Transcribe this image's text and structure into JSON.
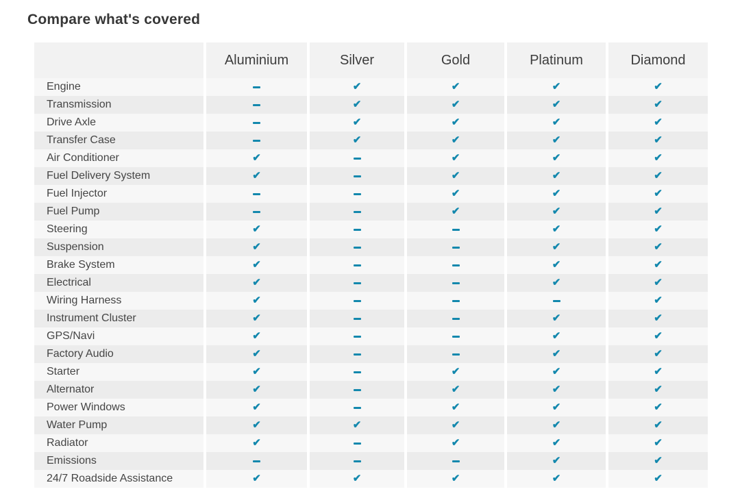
{
  "page": {
    "title": "Compare what's covered"
  },
  "table": {
    "columns": [
      "Aluminium",
      "Silver",
      "Gold",
      "Platinum",
      "Diamond"
    ],
    "rows": [
      {
        "label": "Engine",
        "coverage": [
          "dash",
          "check",
          "check",
          "check",
          "check"
        ]
      },
      {
        "label": "Transmission",
        "coverage": [
          "dash",
          "check",
          "check",
          "check",
          "check"
        ]
      },
      {
        "label": "Drive Axle",
        "coverage": [
          "dash",
          "check",
          "check",
          "check",
          "check"
        ]
      },
      {
        "label": "Transfer Case",
        "coverage": [
          "dash",
          "check",
          "check",
          "check",
          "check"
        ]
      },
      {
        "label": "Air Conditioner",
        "coverage": [
          "check",
          "dash",
          "check",
          "check",
          "check"
        ]
      },
      {
        "label": "Fuel Delivery System",
        "coverage": [
          "check",
          "dash",
          "check",
          "check",
          "check"
        ]
      },
      {
        "label": "Fuel Injector",
        "coverage": [
          "dash",
          "dash",
          "check",
          "check",
          "check"
        ]
      },
      {
        "label": "Fuel Pump",
        "coverage": [
          "dash",
          "dash",
          "check",
          "check",
          "check"
        ]
      },
      {
        "label": "Steering",
        "coverage": [
          "check",
          "dash",
          "dash",
          "check",
          "check"
        ]
      },
      {
        "label": "Suspension",
        "coverage": [
          "check",
          "dash",
          "dash",
          "check",
          "check"
        ]
      },
      {
        "label": "Brake System",
        "coverage": [
          "check",
          "dash",
          "dash",
          "check",
          "check"
        ]
      },
      {
        "label": "Electrical",
        "coverage": [
          "check",
          "dash",
          "dash",
          "check",
          "check"
        ]
      },
      {
        "label": "Wiring Harness",
        "coverage": [
          "check",
          "dash",
          "dash",
          "dash",
          "check"
        ]
      },
      {
        "label": "Instrument Cluster",
        "coverage": [
          "check",
          "dash",
          "dash",
          "check",
          "check"
        ]
      },
      {
        "label": "GPS/Navi",
        "coverage": [
          "check",
          "dash",
          "dash",
          "check",
          "check"
        ]
      },
      {
        "label": "Factory Audio",
        "coverage": [
          "check",
          "dash",
          "dash",
          "check",
          "check"
        ]
      },
      {
        "label": "Starter",
        "coverage": [
          "check",
          "dash",
          "check",
          "check",
          "check"
        ]
      },
      {
        "label": "Alternator",
        "coverage": [
          "check",
          "dash",
          "check",
          "check",
          "check"
        ]
      },
      {
        "label": "Power Windows",
        "coverage": [
          "check",
          "dash",
          "check",
          "check",
          "check"
        ]
      },
      {
        "label": "Water Pump",
        "coverage": [
          "check",
          "check",
          "check",
          "check",
          "check"
        ]
      },
      {
        "label": "Radiator",
        "coverage": [
          "check",
          "dash",
          "check",
          "check",
          "check"
        ]
      },
      {
        "label": "Emissions",
        "coverage": [
          "dash",
          "dash",
          "dash",
          "check",
          "check"
        ]
      },
      {
        "label": "24/7 Roadside Assistance",
        "coverage": [
          "check",
          "check",
          "check",
          "check",
          "check"
        ]
      }
    ],
    "icons": {
      "check": "✔",
      "dash": "–"
    },
    "colors": {
      "icon_teal": "#1388ad",
      "header_bg": "#f2f2f2",
      "row_odd_bg": "#f7f7f7",
      "row_even_bg": "#ececec"
    }
  }
}
